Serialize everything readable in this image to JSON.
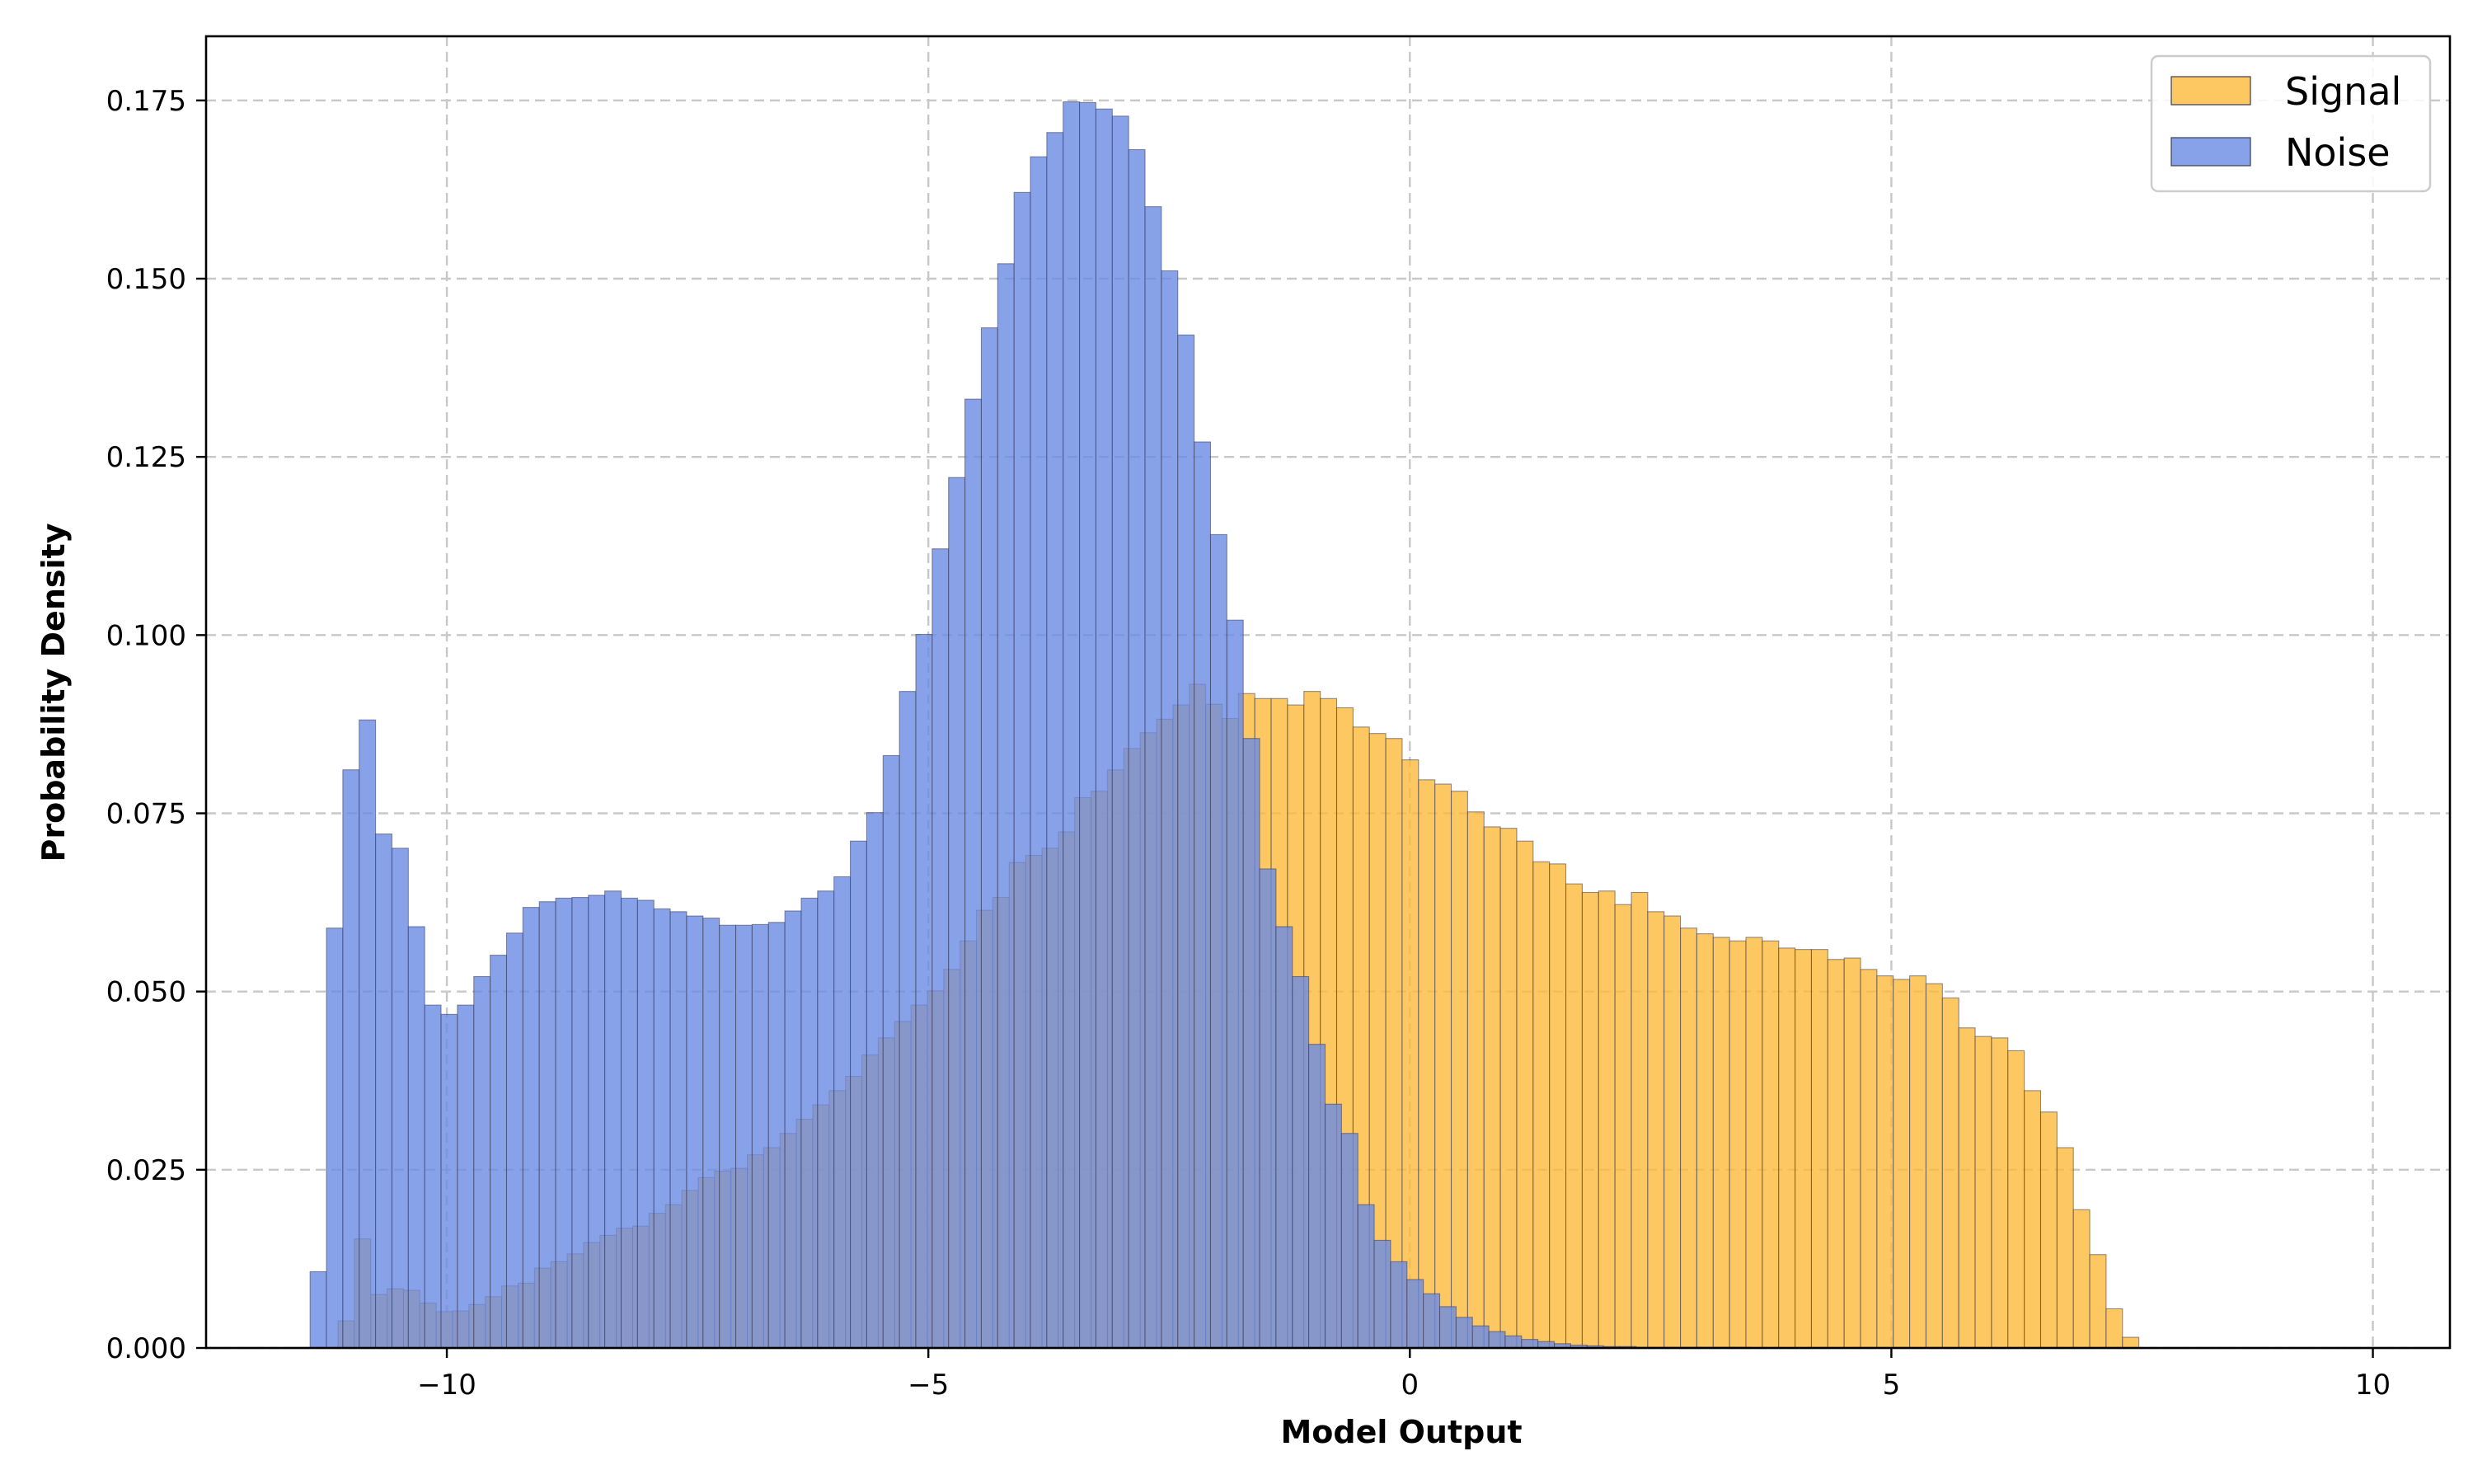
{
  "chart_data": {
    "type": "histogram",
    "title": "",
    "xlabel": "Model Output",
    "ylabel": "Probability Density",
    "xlim": [
      -12.5,
      10.8
    ],
    "ylim": [
      0,
      0.184
    ],
    "x_ticks": [
      -10,
      -5,
      0,
      5,
      10
    ],
    "x_tick_labels": [
      "−10",
      "−5",
      "0",
      "5",
      "10"
    ],
    "y_ticks": [
      0.0,
      0.025,
      0.05,
      0.075,
      0.1,
      0.125,
      0.15,
      0.175
    ],
    "y_tick_labels": [
      "0.000",
      "0.025",
      "0.050",
      "0.075",
      "0.100",
      "0.125",
      "0.150",
      "0.175"
    ],
    "grid": true,
    "legend_position": "top-right",
    "series": [
      {
        "name": "Signal",
        "color": "#fdb93a",
        "fill_opacity": 0.8,
        "bin_start": -11.3,
        "bin_width": 0.17,
        "values": [
          0,
          0.0038,
          0.0153,
          0.0075,
          0.0083,
          0.0081,
          0.0063,
          0.0051,
          0.0052,
          0.0061,
          0.0072,
          0.0087,
          0.0091,
          0.0112,
          0.0121,
          0.0132,
          0.0148,
          0.0158,
          0.0168,
          0.0171,
          0.0189,
          0.0201,
          0.0221,
          0.0239,
          0.0248,
          0.0252,
          0.0271,
          0.0281,
          0.0301,
          0.0321,
          0.0341,
          0.0361,
          0.0381,
          0.0411,
          0.0435,
          0.0458,
          0.0481,
          0.0501,
          0.0531,
          0.0571,
          0.0614,
          0.0632,
          0.0681,
          0.0691,
          0.0701,
          0.0724,
          0.0772,
          0.0781,
          0.0811,
          0.0841,
          0.0863,
          0.0882,
          0.0902,
          0.0931,
          0.0903,
          0.0883,
          0.0918,
          0.0911,
          0.0911,
          0.0902,
          0.0921,
          0.0911,
          0.0898,
          0.0871,
          0.0862,
          0.0855,
          0.0825,
          0.0797,
          0.0791,
          0.0781,
          0.0752,
          0.0731,
          0.0729,
          0.0711,
          0.0682,
          0.0679,
          0.0651,
          0.0639,
          0.0641,
          0.0622,
          0.0639,
          0.0612,
          0.0606,
          0.0589,
          0.0581,
          0.0576,
          0.0571,
          0.0576,
          0.0571,
          0.0561,
          0.0559,
          0.0559,
          0.0545,
          0.0547,
          0.0531,
          0.0522,
          0.0517,
          0.0522,
          0.0511,
          0.0491,
          0.0449,
          0.0437,
          0.0435,
          0.0417,
          0.0361,
          0.0331,
          0.0281,
          0.0194,
          0.0131,
          0.0055,
          0.0015
        ]
      },
      {
        "name": "Noise",
        "color": "#6a8be3",
        "fill_opacity": 0.8,
        "bin_start": -11.42,
        "bin_width": 0.17,
        "values": [
          0.0107,
          0.0589,
          0.0811,
          0.0881,
          0.0721,
          0.0701,
          0.0591,
          0.0481,
          0.0468,
          0.0481,
          0.0521,
          0.0551,
          0.0582,
          0.0618,
          0.0626,
          0.0631,
          0.0632,
          0.0635,
          0.0641,
          0.0631,
          0.0628,
          0.0616,
          0.0612,
          0.0606,
          0.0603,
          0.0593,
          0.0593,
          0.0594,
          0.0597,
          0.0613,
          0.0631,
          0.0641,
          0.0661,
          0.0711,
          0.0751,
          0.0831,
          0.0921,
          0.1001,
          0.1121,
          0.1221,
          0.1331,
          0.1431,
          0.1521,
          0.1621,
          0.1671,
          0.1705,
          0.1748,
          0.1747,
          0.1738,
          0.1728,
          0.1681,
          0.1601,
          0.1511,
          0.1421,
          0.1271,
          0.1141,
          0.1021,
          0.0855,
          0.0672,
          0.0591,
          0.0521,
          0.0426,
          0.0342,
          0.0301,
          0.0201,
          0.0151,
          0.0121,
          0.0096,
          0.0076,
          0.0058,
          0.0043,
          0.0031,
          0.0023,
          0.0017,
          0.0012,
          0.0009,
          0.0006,
          0.0004,
          0.0003,
          0.0002,
          0.0002,
          0.0001,
          0.0001,
          0.0001,
          0.0001,
          0.0001,
          0.0001,
          0.0001
        ]
      }
    ]
  }
}
